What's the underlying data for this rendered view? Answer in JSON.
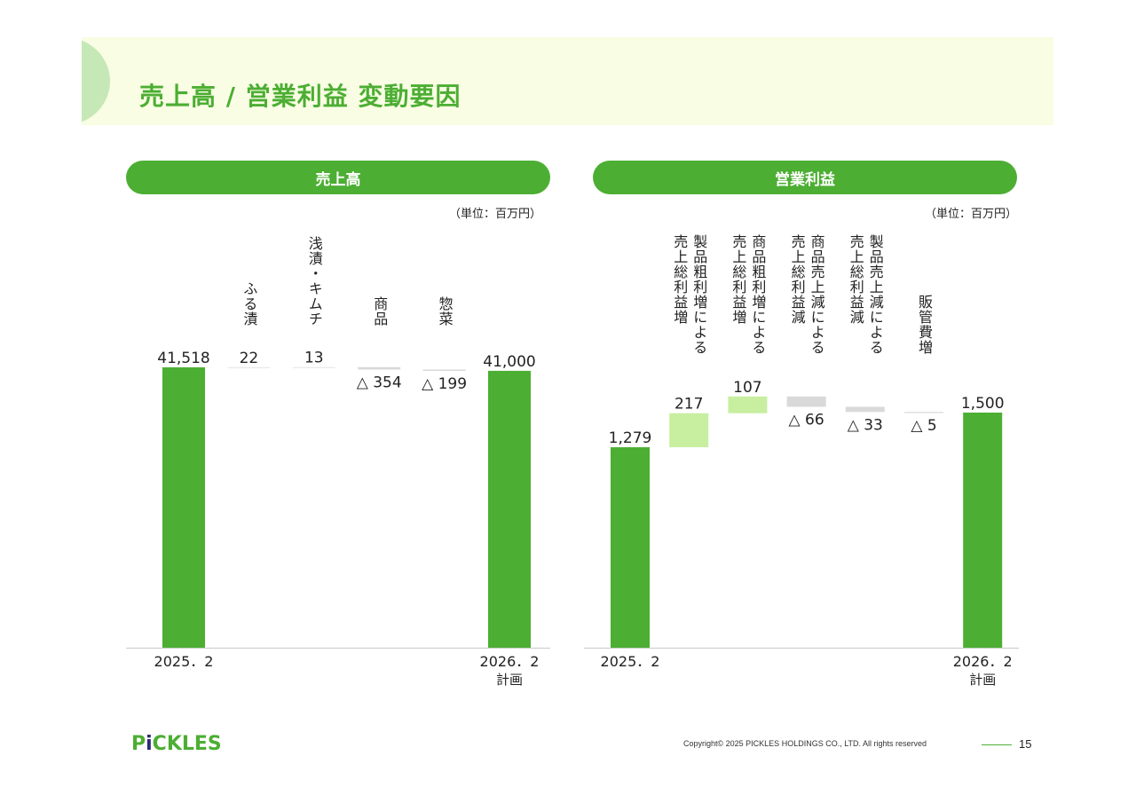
{
  "page": {
    "title": "売上高 / 営業利益 変動要因",
    "copyright": "Copyright© 2025 PICKLES HOLDINGS CO., LTD. All rights reserved",
    "page_number": "15",
    "logo_text": "PICKLES"
  },
  "colors": {
    "accent": "#4cae33",
    "light_green": "#c8eea0",
    "gray": "#d9d9d9",
    "title_band": "#f8fde3"
  },
  "chart_data": [
    {
      "type": "bar",
      "subtype": "waterfall",
      "title": "売上高",
      "unit": "（単位：百万円）",
      "ylim": [
        0,
        41518
      ],
      "bars": [
        {
          "label": "2025．2",
          "sublabel": "",
          "category_label": "",
          "value": 41518,
          "value_label": "41,518",
          "kind": "total"
        },
        {
          "label": "",
          "sublabel": "",
          "category_label": "ふる漬",
          "value": 22,
          "value_label": "22",
          "kind": "increase"
        },
        {
          "label": "",
          "sublabel": "",
          "category_label": "浅漬・キムチ",
          "value": 13,
          "value_label": "13",
          "kind": "increase"
        },
        {
          "label": "",
          "sublabel": "",
          "category_label": "商品",
          "value": -354,
          "value_label": "△ 354",
          "kind": "decrease"
        },
        {
          "label": "",
          "sublabel": "",
          "category_label": "惣菜",
          "value": -199,
          "value_label": "△ 199",
          "kind": "decrease"
        },
        {
          "label": "2026．2",
          "sublabel": "計画",
          "category_label": "",
          "value": 41000,
          "value_label": "41,000",
          "kind": "total"
        }
      ]
    },
    {
      "type": "bar",
      "subtype": "waterfall",
      "title": "営業利益",
      "unit": "（単位：百万円）",
      "ylim": [
        0,
        1500
      ],
      "bars": [
        {
          "label": "2025．2",
          "sublabel": "",
          "category_label": "",
          "value": 1279,
          "value_label": "1,279",
          "kind": "total"
        },
        {
          "label": "",
          "sublabel": "",
          "category_label": [
            "製品粗利増による",
            "売上総利益増"
          ],
          "value": 217,
          "value_label": "217",
          "kind": "increase"
        },
        {
          "label": "",
          "sublabel": "",
          "category_label": [
            "商品粗利増による",
            "売上総利益増"
          ],
          "value": 107,
          "value_label": "107",
          "kind": "increase"
        },
        {
          "label": "",
          "sublabel": "",
          "category_label": [
            "商品売上減による",
            "売上総利益減"
          ],
          "value": -66,
          "value_label": "△ 66",
          "kind": "decrease"
        },
        {
          "label": "",
          "sublabel": "",
          "category_label": [
            "製品売上減による",
            "売上総利益減"
          ],
          "value": -33,
          "value_label": "△ 33",
          "kind": "decrease"
        },
        {
          "label": "",
          "sublabel": "",
          "category_label": [
            "販管費増"
          ],
          "value": -5,
          "value_label": "△ 5",
          "kind": "decrease"
        },
        {
          "label": "2026．2",
          "sublabel": "計画",
          "category_label": "",
          "value": 1500,
          "value_label": "1,500",
          "kind": "total"
        }
      ]
    }
  ]
}
